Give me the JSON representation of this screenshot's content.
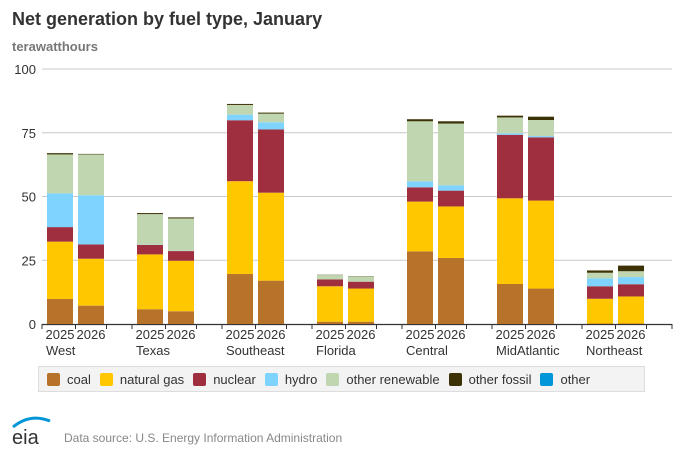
{
  "chart_data": {
    "type": "bar",
    "stacked": true,
    "title": "Net generation by fuel type, January",
    "ylabel": "terawatthours",
    "ylim": [
      0,
      100
    ],
    "yticks": [
      0,
      25,
      50,
      75,
      100
    ],
    "grid": true,
    "legend_placement": "bottom",
    "groups": [
      "West",
      "Texas",
      "Southeast",
      "Florida",
      "Central",
      "MidAtlantic",
      "Northeast"
    ],
    "years": [
      "2025",
      "2026"
    ],
    "series": [
      {
        "name": "coal",
        "color": "#b8732b",
        "values": [
          [
            9.8,
            7.2
          ],
          [
            5.8,
            5.0
          ],
          [
            19.6,
            17.0
          ],
          [
            0.9,
            0.9
          ],
          [
            28.5,
            25.9
          ],
          [
            15.7,
            13.9
          ],
          [
            0.2,
            0.2
          ]
        ]
      },
      {
        "name": "natural gas",
        "color": "#ffc700",
        "values": [
          [
            22.5,
            18.4
          ],
          [
            21.5,
            19.8
          ],
          [
            36.4,
            34.5
          ],
          [
            13.9,
            13.0
          ],
          [
            19.5,
            20.2
          ],
          [
            33.6,
            34.5
          ],
          [
            9.7,
            10.6
          ]
        ]
      },
      {
        "name": "nuclear",
        "color": "#9f2f3f",
        "values": [
          [
            5.7,
            5.6
          ],
          [
            3.7,
            3.8
          ],
          [
            23.9,
            24.8
          ],
          [
            2.7,
            2.7
          ],
          [
            5.6,
            6.2
          ],
          [
            24.9,
            24.8
          ],
          [
            4.9,
            4.8
          ]
        ]
      },
      {
        "name": "hydro",
        "color": "#7fd4ff",
        "values": [
          [
            13.2,
            19.3
          ],
          [
            0.1,
            0.1
          ],
          [
            2.2,
            2.8
          ],
          [
            0,
            0
          ],
          [
            2.3,
            2.1
          ],
          [
            0.6,
            0.5
          ],
          [
            3.1,
            2.8
          ]
        ]
      },
      {
        "name": "other renewable",
        "color": "#bfd6b0",
        "values": [
          [
            15.3,
            16.0
          ],
          [
            12.0,
            12.7
          ],
          [
            3.8,
            3.4
          ],
          [
            1.7,
            2.1
          ],
          [
            23.6,
            24.2
          ],
          [
            6.2,
            6.3
          ],
          [
            2.2,
            2.3
          ]
        ]
      },
      {
        "name": "other fossil",
        "color": "#3d3205",
        "values": [
          [
            0.5,
            0.2
          ],
          [
            0.4,
            0.4
          ],
          [
            0.4,
            0.4
          ],
          [
            0.1,
            0.1
          ],
          [
            0.8,
            0.9
          ],
          [
            0.7,
            1.3
          ],
          [
            0.9,
            2.2
          ]
        ]
      },
      {
        "name": "other",
        "color": "#0096d7",
        "values": [
          [
            0,
            0
          ],
          [
            0,
            0
          ],
          [
            0,
            0
          ],
          [
            0,
            0
          ],
          [
            0,
            0
          ],
          [
            0,
            0
          ],
          [
            0,
            0
          ]
        ]
      }
    ]
  },
  "footer": {
    "source": "Data source: U.S. Energy Information Administration",
    "logo_text": "eia"
  }
}
